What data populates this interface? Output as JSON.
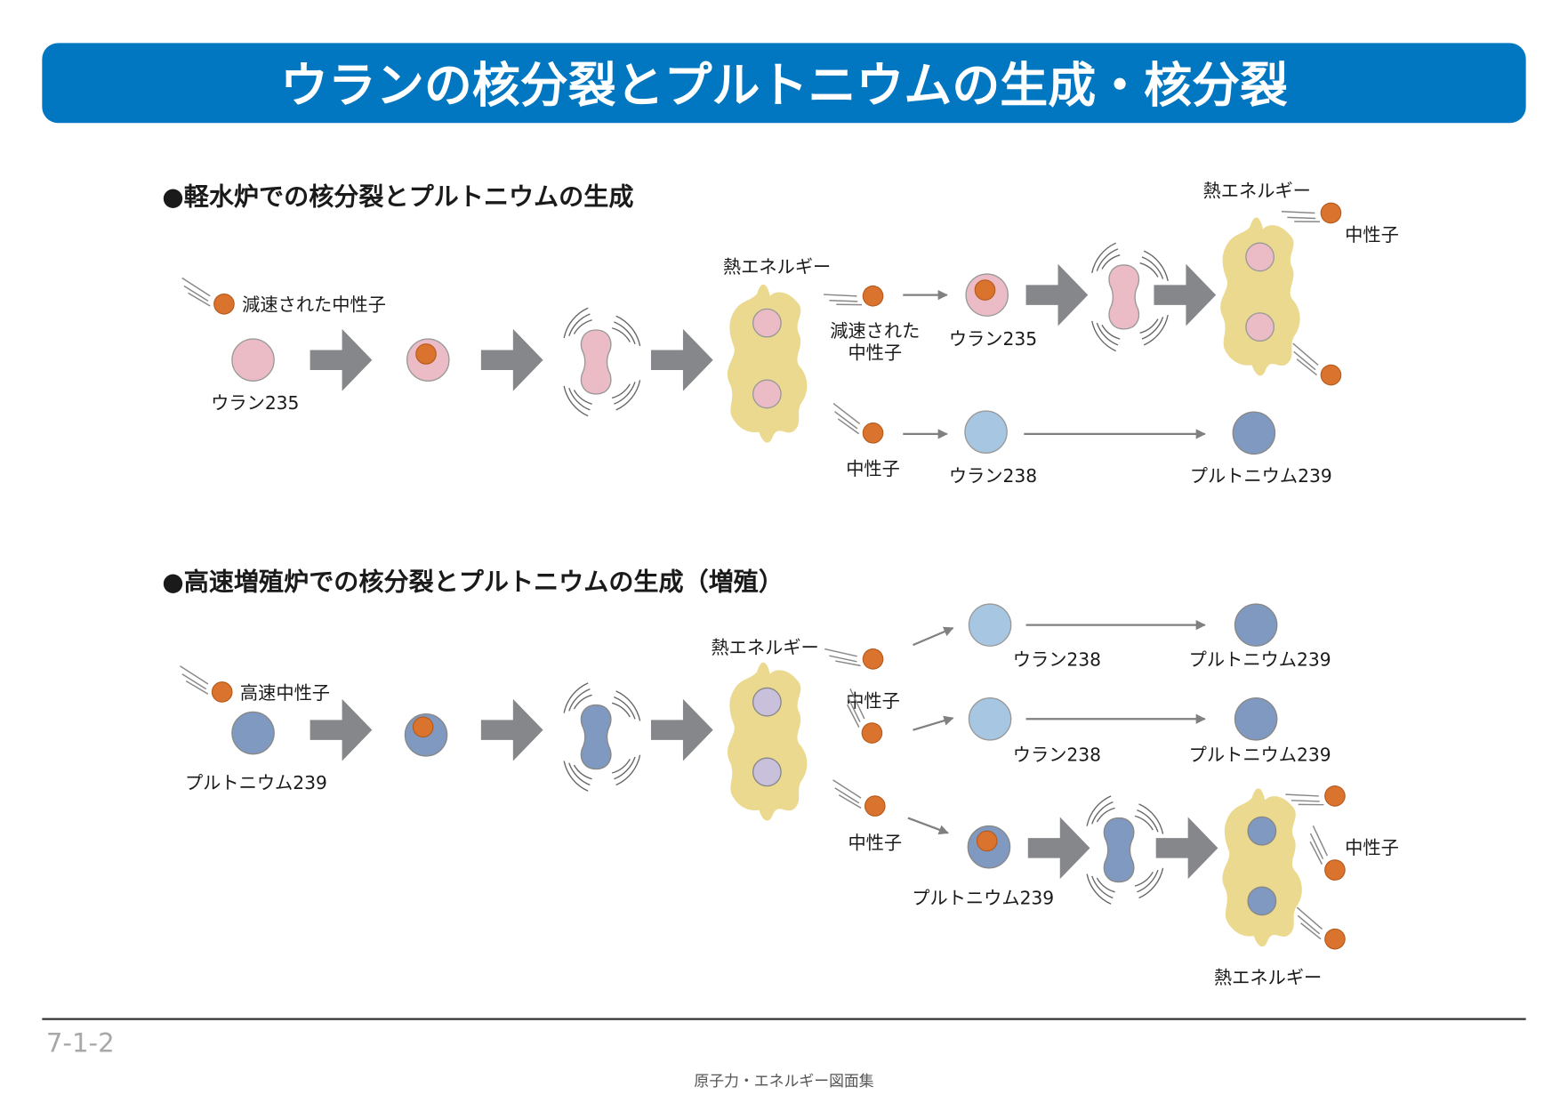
{
  "title": "ウランの核分裂とプルトニウムの生成・核分裂",
  "colors": {
    "title_bar": "#0077c0",
    "neutron": "#d9732e",
    "u235": "#ebbcc5",
    "u238": "#a7c6e2",
    "pu239": "#7f99c1",
    "heat": "#ead98f",
    "arrow": "#86878a"
  },
  "lwr": {
    "heading": "●軽水炉での核分裂とプルトニウムの生成",
    "slow_neutron": "減速された中性子",
    "u235": "ウラン235",
    "heat1": "熱エネルギー",
    "slow_neutron_a": "減速された",
    "slow_neutron_b": "中性子",
    "u235_b": "ウラン235",
    "heat2": "熱エネルギー",
    "neutron_out": "中性子",
    "neutron_low": "中性子",
    "u238": "ウラン238",
    "pu239": "プルトニウム239"
  },
  "fbr": {
    "heading": "●高速増殖炉での核分裂とプルトニウムの生成（増殖）",
    "fast_neutron": "高速中性子",
    "pu239": "プルトニウム239",
    "heat1": "熱エネルギー",
    "neutron1": "中性子",
    "u238_1": "ウラン238",
    "pu239_1": "プルトニウム239",
    "u238_2": "ウラン238",
    "pu239_2": "プルトニウム239",
    "neutron3": "中性子",
    "pu239_3": "プルトニウム239",
    "neutron_out": "中性子",
    "heat2": "熱エネルギー"
  },
  "page_number": "7-1-2",
  "footer": "原子力・エネルギー図面集"
}
